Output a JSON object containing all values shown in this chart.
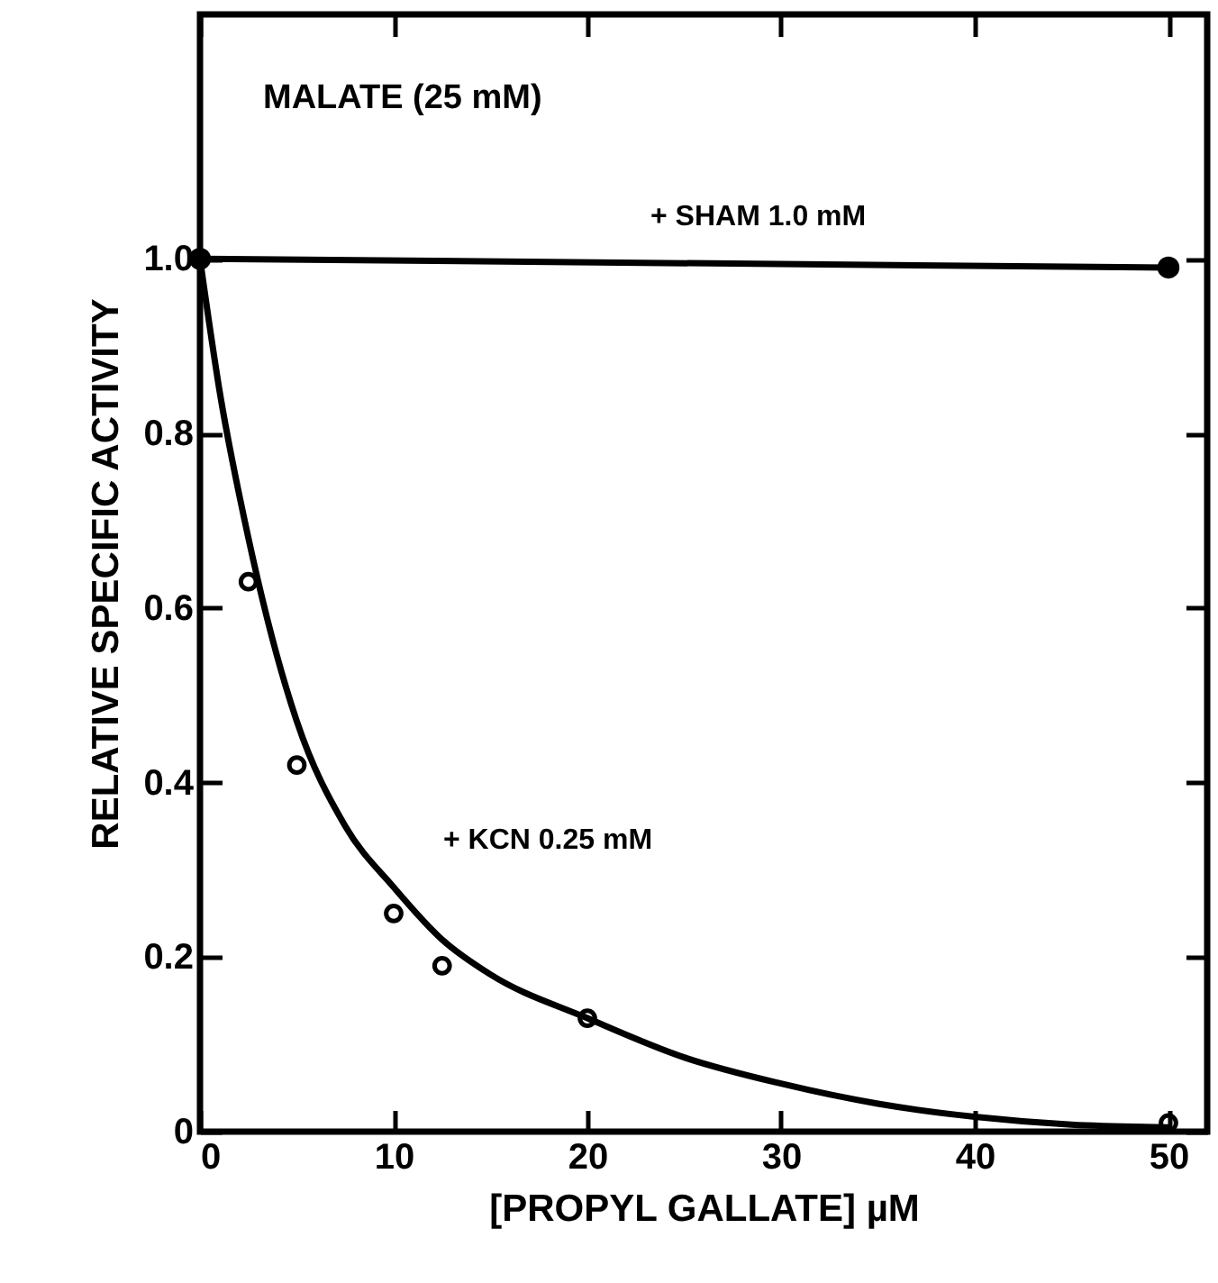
{
  "chart_data": {
    "type": "line",
    "xlabel": "[PROPYL GALLATE] µM",
    "ylabel": "RELATIVE SPECIFIC ACTIVITY",
    "annotations": [
      "MALATE (25 mM)"
    ],
    "xlim": [
      0,
      52
    ],
    "xticks": [
      0,
      10,
      20,
      30,
      40,
      50
    ],
    "ylim": [
      0,
      1.28
    ],
    "yticks": [
      0,
      0.2,
      0.4,
      0.6,
      {
        "value": 0.8,
        "label": "0.8"
      },
      {
        "value": 1,
        "label": "1.0"
      }
    ],
    "grid": false,
    "series": [
      {
        "name": "+ SHAM 1.0 mM",
        "color": "#000000",
        "marker": "circle",
        "x": [
          0,
          50
        ],
        "values": [
          1.0,
          0.99
        ]
      },
      {
        "color": "#000000",
        "marker": "none",
        "x": [
          0,
          1,
          2.5,
          5,
          7.5,
          10,
          12.5,
          15,
          20,
          25,
          30,
          35,
          40,
          45,
          50
        ],
        "values": [
          1.0,
          0.85,
          0.68,
          0.47,
          0.35,
          0.28,
          0.22,
          0.18,
          0.13,
          0.085,
          0.055,
          0.032,
          0.017,
          0.008,
          0.005
        ]
      },
      {
        "name": "+ KCN 0.25 mM",
        "type": "scatter",
        "color": "#000000",
        "marker": "circle",
        "x": [
          2.5,
          5,
          10,
          12.5,
          20,
          50
        ],
        "values": [
          0.63,
          0.42,
          0.25,
          0.19,
          0.13,
          0.01
        ]
      }
    ]
  }
}
